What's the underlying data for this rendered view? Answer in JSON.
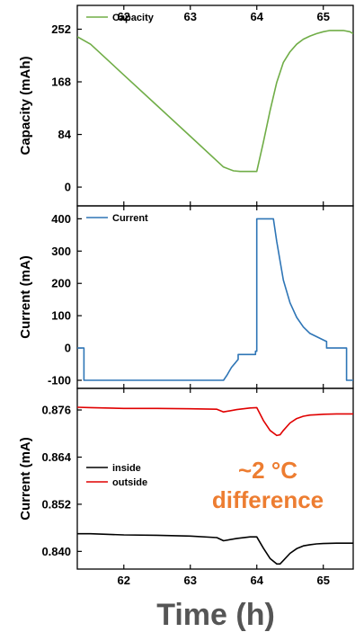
{
  "chart_data": [
    {
      "type": "line",
      "ylabel": "Capacity (mAh)",
      "xlim": [
        61.3,
        65.45
      ],
      "ylim": [
        -30,
        290
      ],
      "xticks": [
        62,
        63,
        64,
        65
      ],
      "yticks": [
        0,
        84,
        168,
        252
      ],
      "grid": false,
      "legend_position": "top-left",
      "series": [
        {
          "name": "Capacity",
          "color": "#70AD47",
          "x": [
            61.3,
            61.5,
            62.0,
            62.5,
            63.0,
            63.5,
            63.65,
            63.75,
            64.0,
            64.1,
            64.2,
            64.3,
            64.4,
            64.5,
            64.6,
            64.7,
            64.8,
            64.9,
            65.0,
            65.1,
            65.2,
            65.3,
            65.4,
            65.45
          ],
          "y": [
            240,
            228,
            179,
            130,
            81,
            32,
            26,
            25,
            25,
            72,
            122,
            167,
            199,
            216,
            228,
            236,
            241,
            245,
            248,
            250,
            250,
            250,
            248,
            245
          ]
        }
      ]
    },
    {
      "type": "line",
      "ylabel": "Current (mA)",
      "xlim": [
        61.3,
        65.45
      ],
      "ylim": [
        -125,
        440
      ],
      "xticks": [
        62,
        63,
        64,
        65
      ],
      "yticks": [
        -100,
        0,
        100,
        200,
        300,
        400
      ],
      "grid": false,
      "legend_position": "top-left",
      "series": [
        {
          "name": "Current",
          "color": "#2E75B6",
          "x": [
            61.3,
            61.4,
            61.4,
            63.5,
            63.55,
            63.62,
            63.68,
            63.72,
            63.72,
            63.98,
            63.98,
            64.0,
            64.0,
            64.25,
            64.3,
            64.35,
            64.4,
            64.5,
            64.6,
            64.7,
            64.8,
            64.9,
            65.0,
            65.05,
            65.05,
            65.35,
            65.35,
            65.45
          ],
          "y": [
            0,
            0,
            -100,
            -100,
            -85,
            -60,
            -45,
            -35,
            -20,
            -20,
            -10,
            -10,
            400,
            400,
            330,
            270,
            210,
            140,
            95,
            65,
            45,
            35,
            25,
            20,
            0,
            0,
            -100,
            -100
          ]
        }
      ]
    },
    {
      "type": "line",
      "ylabel": "Current (mA)",
      "xlabel": "Time (h)",
      "xlim": [
        61.3,
        65.45
      ],
      "ylim": [
        0.8355,
        0.8815
      ],
      "xticks": [
        62,
        63,
        64,
        65
      ],
      "yticks": [
        0.84,
        0.852,
        0.864,
        0.876
      ],
      "grid": false,
      "legend_position": "center-left",
      "annotation": "~2 °C difference",
      "series": [
        {
          "name": "inside",
          "color": "#000000",
          "x": [
            61.3,
            61.5,
            62.0,
            62.5,
            63.0,
            63.4,
            63.5,
            63.7,
            63.9,
            64.0,
            64.1,
            64.2,
            64.3,
            64.35,
            64.4,
            64.5,
            64.6,
            64.7,
            64.8,
            64.9,
            65.0,
            65.2,
            65.45
          ],
          "y": [
            0.8445,
            0.8445,
            0.8442,
            0.8441,
            0.8439,
            0.8435,
            0.8427,
            0.8433,
            0.8437,
            0.8437,
            0.8408,
            0.8382,
            0.8368,
            0.8368,
            0.8377,
            0.8395,
            0.8407,
            0.8414,
            0.8417,
            0.8419,
            0.842,
            0.8421,
            0.8421
          ]
        },
        {
          "name": "outside",
          "color": "#E00000",
          "x": [
            61.3,
            61.5,
            62.0,
            62.5,
            63.0,
            63.4,
            63.5,
            63.7,
            63.9,
            64.0,
            64.1,
            64.2,
            64.3,
            64.35,
            64.4,
            64.5,
            64.6,
            64.7,
            64.8,
            64.9,
            65.0,
            65.2,
            65.45
          ],
          "y": [
            0.8767,
            0.8766,
            0.8764,
            0.8764,
            0.8763,
            0.8762,
            0.8755,
            0.8761,
            0.8765,
            0.8766,
            0.8733,
            0.8708,
            0.8695,
            0.8697,
            0.8708,
            0.8727,
            0.8738,
            0.8744,
            0.8747,
            0.8748,
            0.8749,
            0.875,
            0.875
          ]
        }
      ]
    }
  ]
}
